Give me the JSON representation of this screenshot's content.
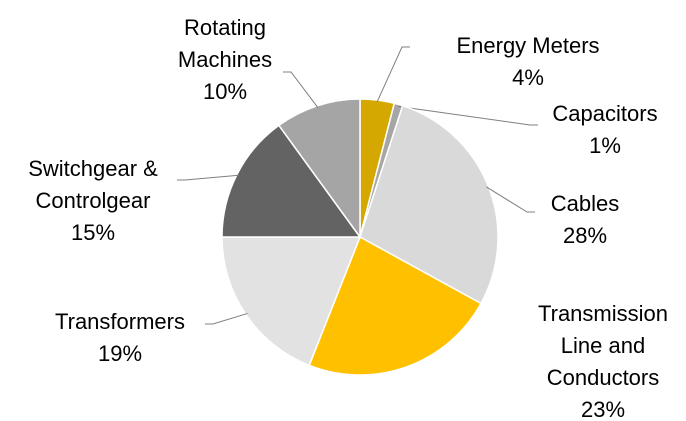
{
  "chart_data": {
    "type": "pie",
    "categories": [
      "Energy Meters",
      "Capacitors",
      "Cables",
      "Transmission Line and Conductors",
      "Transformers",
      "Switchgear & Controlgear",
      "Rotating Machines"
    ],
    "values": [
      4,
      1,
      28,
      23,
      19,
      15,
      10
    ],
    "value_labels": [
      "4%",
      "1%",
      "28%",
      "23%",
      "19%",
      "15%",
      "10%"
    ],
    "colors": [
      "#d4a800",
      "#a6a6a6",
      "#d9d9d9",
      "#ffc000",
      "#e2e2e2",
      "#636363",
      "#a5a5a5"
    ]
  }
}
